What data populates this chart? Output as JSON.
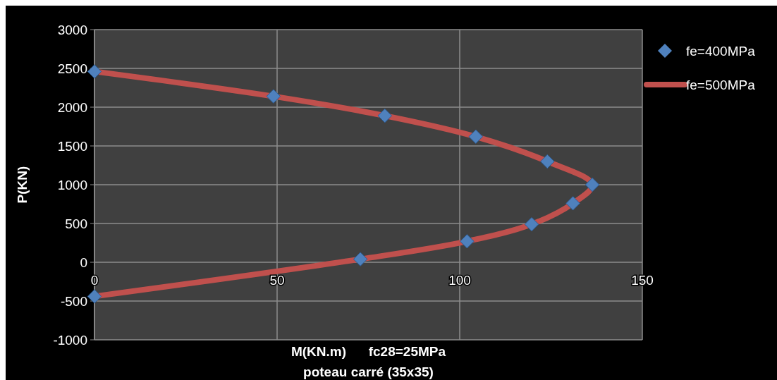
{
  "chart_data": {
    "type": "scatter",
    "xlabel": "M(KN.m)      fc28=25MPa\npoteau carré (35x35)",
    "ylabel": "P(KN)",
    "xlim": [
      0,
      150
    ],
    "xticks": [
      0,
      50,
      100,
      150
    ],
    "ylim": [
      -1000,
      3000
    ],
    "yticks": [
      -1000,
      -500,
      0,
      500,
      1000,
      1500,
      2000,
      2500,
      3000
    ],
    "grid": true,
    "legend": "right",
    "series": [
      {
        "name": "fe=400MPa",
        "marker": "diamond",
        "color": "#4f81bd",
        "x": [
          0,
          49,
          79.5,
          104.4,
          124,
          136.3,
          131,
          119.7,
          102,
          72.8,
          0
        ],
        "values": [
          2460,
          2140,
          1890,
          1620,
          1300,
          1000,
          760,
          490,
          270,
          40,
          -440
        ]
      },
      {
        "name": "fe=500MPa",
        "type": "line",
        "line_style": "solid",
        "color": "#c0504d",
        "x": [
          0,
          49,
          79.5,
          104.4,
          124,
          136.3,
          131,
          119.7,
          102,
          72.8,
          0
        ],
        "values": [
          2460,
          2140,
          1890,
          1620,
          1300,
          1000,
          760,
          490,
          270,
          40,
          -440
        ]
      }
    ]
  }
}
